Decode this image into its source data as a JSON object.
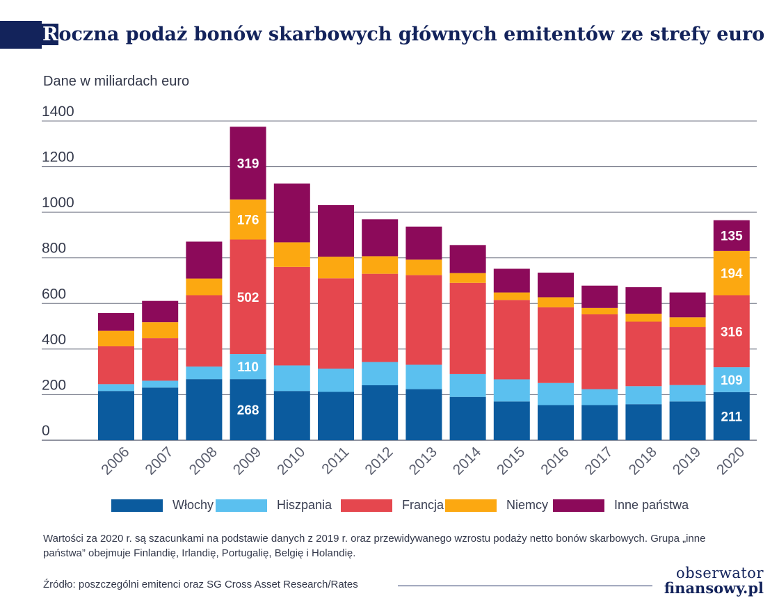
{
  "title": {
    "first_letter": "R",
    "rest": "oczna podaż bonów skarbowych głównych emitentów ze strefy euro"
  },
  "subtitle": "Dane w miliardach euro",
  "chart_data": {
    "type": "bar",
    "stacked": true,
    "categories": [
      "2006",
      "2007",
      "2008",
      "2009",
      "2010",
      "2011",
      "2012",
      "2013",
      "2014",
      "2015",
      "2016",
      "2017",
      "2018",
      "2019",
      "2020"
    ],
    "series": [
      {
        "name": "Włochy",
        "color": "#0b5b9e",
        "values": [
          216,
          231,
          268,
          268,
          216,
          212,
          241,
          224,
          190,
          170,
          154,
          154,
          158,
          170,
          211
        ]
      },
      {
        "name": "Hiszpania",
        "color": "#5bc0ef",
        "values": [
          30,
          30,
          55,
          110,
          112,
          102,
          102,
          107,
          100,
          97,
          97,
          70,
          79,
          72,
          109
        ]
      },
      {
        "name": "Francja",
        "color": "#e5474e",
        "values": [
          166,
          187,
          313,
          502,
          432,
          396,
          387,
          393,
          400,
          348,
          332,
          328,
          283,
          255,
          316
        ]
      },
      {
        "name": "Niemcy",
        "color": "#fca811",
        "values": [
          68,
          70,
          73,
          176,
          108,
          95,
          77,
          68,
          43,
          33,
          44,
          28,
          35,
          42,
          194
        ]
      },
      {
        "name": "Inne państwa",
        "color": "#8c0a5a",
        "values": [
          78,
          93,
          162,
          319,
          258,
          226,
          162,
          145,
          123,
          104,
          108,
          98,
          116,
          109,
          135
        ]
      }
    ],
    "data_labels": {
      "2009": {
        "Włochy": "268",
        "Hiszpania": "110",
        "Francja": "502",
        "Niemcy": "176",
        "Inne państwa": "319"
      },
      "2020": {
        "Włochy": "211",
        "Hiszpania": "109",
        "Francja": "316",
        "Niemcy": "194",
        "Inne państwa": "135"
      }
    },
    "y_ticks": [
      "0",
      "200",
      "400",
      "600",
      "800",
      "1000",
      "1200",
      "1400"
    ],
    "ylim": [
      0,
      1400
    ],
    "grid": true,
    "legend_position": "bottom",
    "xlabel": "",
    "ylabel": ""
  },
  "note": "Wartości za 2020 r. są szacunkami na podstawie danych z 2019 r. oraz przewidywanego wzrostu podaży netto bonów skarbowych. Grupa „inne państwa” obejmuje Finlandię, Irlandię, Portugalię, Belgię i Holandię.",
  "source": "Źródło: poszczególni emitenci oraz SG Cross Asset Research/Rates",
  "logo": {
    "line1": "obserwator",
    "line2": "finansowy.pl"
  },
  "colors": {
    "title": "#13235b",
    "grid": "#6d7080",
    "axis_text": "#33384a"
  }
}
